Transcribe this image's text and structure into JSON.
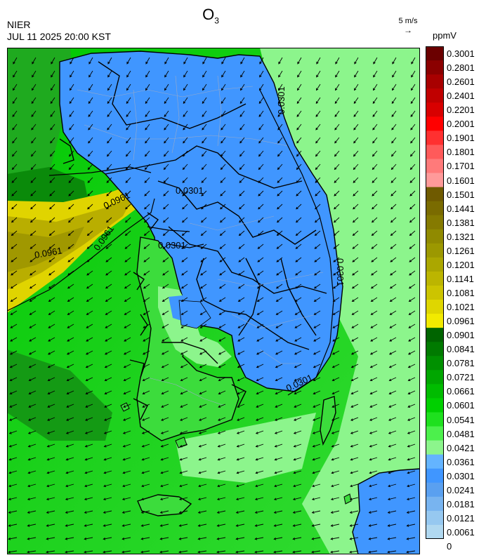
{
  "header": {
    "title_main": "O",
    "title_sub": "3",
    "agency": "NIER",
    "datetime": "JUL 11 2025 20:00 KST"
  },
  "wind_reference": {
    "label": "5 m/s",
    "arrow": "→"
  },
  "legend": {
    "unit": "ppmV",
    "labels": [
      "0.3001",
      "0.2801",
      "0.2601",
      "0.2401",
      "0.2201",
      "0.2001",
      "0.1901",
      "0.1801",
      "0.1701",
      "0.1601",
      "0.1501",
      "0.1441",
      "0.1381",
      "0.1321",
      "0.1261",
      "0.1201",
      "0.1141",
      "0.1081",
      "0.1021",
      "0.0961",
      "0.0901",
      "0.0841",
      "0.0781",
      "0.0721",
      "0.0661",
      "0.0601",
      "0.0541",
      "0.0481",
      "0.0421",
      "0.0361",
      "0.0301",
      "0.0241",
      "0.0181",
      "0.0121",
      "0.0061",
      "0"
    ],
    "colors": [
      "#6b0000",
      "#8b0000",
      "#a80000",
      "#c00000",
      "#d80000",
      "#ff0000",
      "#ff3030",
      "#ff5a5a",
      "#ff7a7a",
      "#ff9a9a",
      "#6f5a00",
      "#7a6b00",
      "#857a00",
      "#908a00",
      "#9c9800",
      "#aba700",
      "#bcb500",
      "#ccc400",
      "#dfd600",
      "#f2ea00",
      "#006400",
      "#007a00",
      "#009000",
      "#00a600",
      "#00bc00",
      "#00d000",
      "#1ee01e",
      "#4cf04c",
      "#8cf58c",
      "#64b4ff",
      "#4096ff",
      "#5aa0f0",
      "#78b4f0",
      "#96c8f0",
      "#b0d8f0"
    ]
  },
  "map": {
    "contour_labels": [
      "0.0961",
      "0.0961",
      "0.0301",
      "0.0961",
      "0.0301",
      "0.0301",
      "0.0301",
      "0.0301"
    ]
  }
}
